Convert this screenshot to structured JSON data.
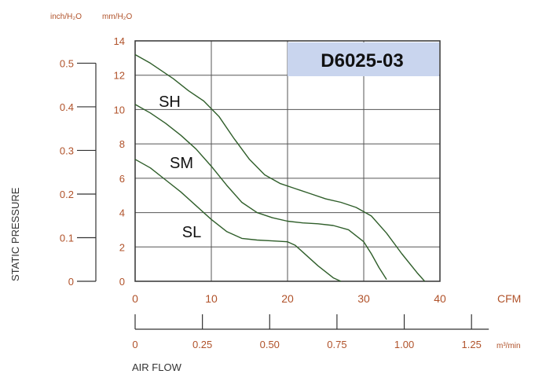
{
  "chart_data": {
    "type": "line",
    "title": "D6025-03",
    "ylabel": "STATIC PRESSURE",
    "xlabel": "AIR FLOW",
    "x_unit_cfm": "CFM",
    "x_unit_m3": "m³/min",
    "y_unit_inch": "inch/H₂O",
    "y_unit_mm": "mm/H₂O",
    "xlim": [
      0,
      40
    ],
    "ylim": [
      0,
      14
    ],
    "grid": true,
    "x_ticks_cfm": [
      "0",
      "10",
      "20",
      "30",
      "40"
    ],
    "x_ticks_m3": [
      "0",
      "0.25",
      "0.50",
      "0.75",
      "1.00",
      "1.25"
    ],
    "y_ticks_mm": [
      "0",
      "2",
      "4",
      "6",
      "8",
      "10",
      "12",
      "14"
    ],
    "y_ticks_inch": [
      "0",
      "0.1",
      "0.2",
      "0.3",
      "0.4",
      "0.5"
    ],
    "series": [
      {
        "name": "SH",
        "x": [
          0,
          2,
          5,
          7,
          9,
          11,
          13,
          15,
          17,
          19,
          21,
          23,
          25,
          27,
          29,
          31,
          33,
          35,
          37,
          38
        ],
        "y": [
          13.2,
          12.7,
          11.8,
          11.1,
          10.5,
          9.6,
          8.3,
          7.1,
          6.2,
          5.7,
          5.4,
          5.1,
          4.8,
          4.6,
          4.3,
          3.8,
          2.8,
          1.6,
          0.5,
          0
        ]
      },
      {
        "name": "SM",
        "x": [
          0,
          2,
          4,
          6,
          8,
          10,
          12,
          14,
          16,
          18,
          20,
          22,
          24,
          26,
          28,
          30,
          31,
          32,
          33
        ],
        "y": [
          10.3,
          9.8,
          9.2,
          8.5,
          7.7,
          6.7,
          5.6,
          4.6,
          4.0,
          3.7,
          3.5,
          3.4,
          3.35,
          3.25,
          3.0,
          2.3,
          1.6,
          0.8,
          0.1
        ]
      },
      {
        "name": "SL",
        "x": [
          0,
          2,
          4,
          6,
          8,
          10,
          12,
          14,
          16,
          18,
          20,
          21,
          22,
          24,
          26,
          27
        ],
        "y": [
          7.1,
          6.6,
          5.9,
          5.2,
          4.4,
          3.6,
          2.9,
          2.5,
          2.4,
          2.35,
          2.3,
          2.1,
          1.7,
          0.9,
          0.2,
          0
        ]
      }
    ]
  },
  "colors": {
    "curve": "#2f5e2a",
    "grid": "#555555",
    "axis_labels": "#b0522a",
    "title_box": "#c9d5ee",
    "title_text": "#111111"
  }
}
